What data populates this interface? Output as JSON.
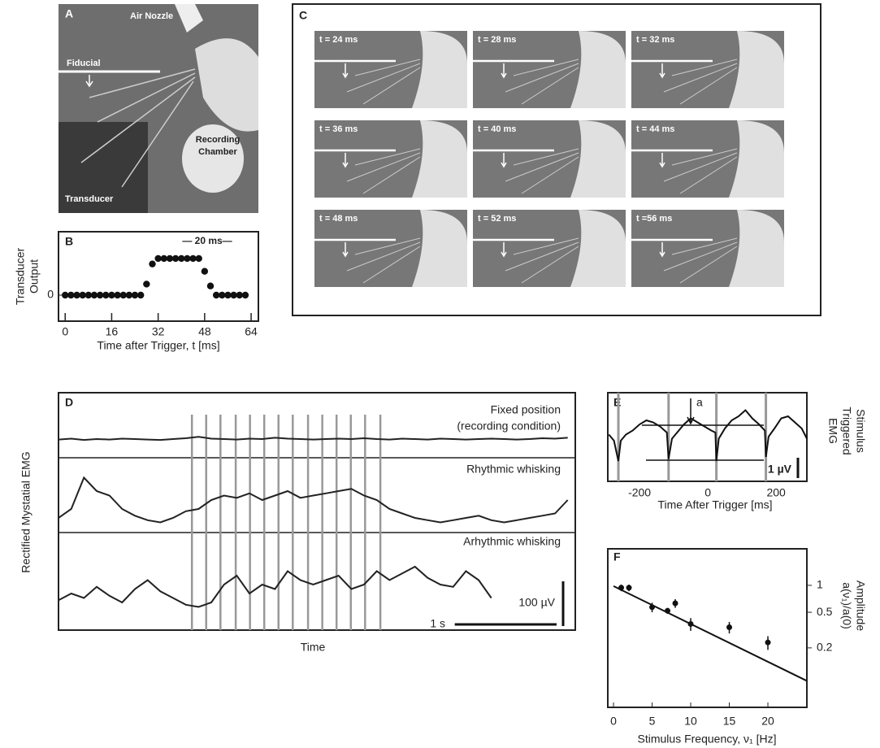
{
  "figure_panels": {
    "A": {
      "letter": "A",
      "labels": {
        "nozzle": "Air Nozzle",
        "fiducial": "Fiducial",
        "chamber": [
          "Recording",
          "Chamber"
        ],
        "transducer": "Transducer"
      }
    },
    "C": {
      "letter": "C",
      "frames": [
        "t = 24 ms",
        "t = 28 ms",
        "t = 32 ms",
        "t = 36 ms",
        "t = 40 ms",
        "t = 44 ms",
        "t = 48 ms",
        "t = 52 ms",
        "t =56 ms"
      ]
    }
  },
  "chart_data": [
    {
      "type": "scatter",
      "panel": "B",
      "ylabel": [
        "Transducer",
        "Output"
      ],
      "xlabel": "Time after Trigger, t [ms]",
      "annotation": "— 20 ms—",
      "x": [
        0,
        2,
        4,
        6,
        8,
        10,
        12,
        14,
        16,
        18,
        20,
        22,
        24,
        26,
        28,
        30,
        32,
        34,
        36,
        38,
        40,
        42,
        44,
        46,
        48,
        50,
        52,
        54,
        56,
        58,
        60,
        62
      ],
      "values": [
        0,
        0,
        0,
        0,
        0,
        0,
        0,
        0,
        0,
        0,
        0,
        0,
        0,
        0,
        0.3,
        0.85,
        1,
        1,
        1,
        1,
        1,
        1,
        1,
        1,
        0.65,
        0.25,
        0,
        0,
        0,
        0,
        0,
        0
      ],
      "xlim": [
        -2.3,
        66.5
      ],
      "ylim": [
        -0.71,
        1.73
      ],
      "xticks": [
        0,
        16,
        32,
        48,
        64
      ],
      "yticks": [
        0
      ],
      "color": "#111"
    },
    {
      "type": "traces",
      "panel": "D",
      "ylabel": "Rectified Mystatial EMG",
      "xlabel": "Time",
      "xlim": [
        0,
        5.05
      ],
      "stimuli": [
        1.31,
        1.45,
        1.59,
        1.74,
        1.88,
        2.02,
        2.16,
        2.3,
        2.45,
        2.59,
        2.73,
        2.87,
        3.01,
        3.16
      ],
      "x": [
        0,
        0.125,
        0.25,
        0.375,
        0.5,
        0.625,
        0.75,
        0.875,
        1,
        1.125,
        1.25,
        1.375,
        1.5,
        1.625,
        1.75,
        1.875,
        2,
        2.125,
        2.25,
        2.375,
        2.5,
        2.625,
        2.75,
        2.875,
        3,
        3.125,
        3.25,
        3.375,
        3.5,
        3.625,
        3.75,
        3.875,
        4,
        4.125,
        4.25,
        4.375,
        4.5,
        4.625,
        4.75,
        4.875,
        5
      ],
      "series": [
        {
          "title": [
            "Fixed position",
            "(recording condition)"
          ],
          "color": "#222",
          "values": [
            8,
            10,
            7,
            9,
            8,
            10,
            9,
            8,
            7,
            9,
            11,
            14,
            10,
            9,
            8,
            10,
            9,
            12,
            10,
            9,
            8,
            9,
            10,
            9,
            11,
            9,
            8,
            10,
            9,
            8,
            10,
            9,
            8,
            9,
            10,
            9,
            8,
            9,
            11,
            10,
            12
          ]
        },
        {
          "title": [
            "Rhythmic whisking"
          ],
          "color": "#222",
          "values": [
            20,
            40,
            110,
            80,
            70,
            40,
            25,
            15,
            10,
            20,
            35,
            40,
            60,
            70,
            65,
            75,
            60,
            70,
            80,
            65,
            70,
            75,
            80,
            85,
            70,
            60,
            40,
            30,
            20,
            15,
            10,
            15,
            20,
            25,
            15,
            10,
            15,
            20,
            25,
            30,
            60
          ]
        },
        {
          "title": [
            "Arhythmic whisking"
          ],
          "color": "#222",
          "values": [
            25,
            40,
            30,
            55,
            35,
            20,
            50,
            70,
            45,
            30,
            15,
            10,
            20,
            60,
            80,
            40,
            60,
            50,
            90,
            70,
            60,
            70,
            80,
            50,
            60,
            90,
            70,
            85,
            100,
            75,
            60,
            55,
            90,
            70,
            30,
            null,
            null,
            null,
            null,
            null,
            null
          ]
        }
      ],
      "scale_bars": [
        {
          "value": 100,
          "label": "100 µV"
        },
        {
          "value": 1,
          "label": "1 s"
        }
      ]
    },
    {
      "type": "line",
      "panel": "E",
      "xlabel": "Time After Trigger  [ms]",
      "ylabel": [
        "Stimulus",
        "Triggered",
        "EMG"
      ],
      "x": [
        -290,
        -275,
        -262,
        -255,
        -240,
        -220,
        -200,
        -180,
        -160,
        -140,
        -120,
        -115,
        -105,
        -90,
        -70,
        -50,
        -30,
        -10,
        10,
        22,
        25,
        32,
        50,
        70,
        90,
        110,
        130,
        150,
        167,
        170,
        178,
        195,
        215,
        235,
        255,
        275,
        290
      ],
      "values": [
        -0.3,
        -0.6,
        -1.6,
        -0.6,
        -0.3,
        -0.1,
        0.2,
        0.4,
        0.3,
        0.1,
        -0.2,
        -1.5,
        -0.5,
        -0.2,
        0.2,
        0.5,
        0.3,
        0.1,
        -0.1,
        -0.2,
        -1.6,
        -0.5,
        0.0,
        0.4,
        0.6,
        0.9,
        0.5,
        0.2,
        -0.1,
        -1.4,
        -0.4,
        0.0,
        0.5,
        0.6,
        0.3,
        0.0,
        -0.5
      ],
      "xlim": [
        -293,
        290
      ],
      "ylim": [
        -2.6,
        1.76
      ],
      "xticks": [
        -200,
        0,
        200
      ],
      "stimuli": [
        -262,
        -115,
        25,
        170
      ],
      "reference_levels": [
        0.16,
        -1.56
      ],
      "annotation": "a",
      "scale_bar": {
        "value": 1,
        "label": "1 µV"
      },
      "color": "#111"
    },
    {
      "type": "errorscatter",
      "panel": "F",
      "log_y": true,
      "xlabel": "Stimulus Frequency, ν₁ [Hz]",
      "ylabel": [
        "Amplitude",
        "a(ν₁)/a(0)"
      ],
      "x": [
        1,
        2,
        5,
        7,
        8,
        10,
        15,
        20
      ],
      "values": [
        0.94,
        0.94,
        0.57,
        0.52,
        0.63,
        0.37,
        0.34,
        0.23
      ],
      "errors": [
        0.08,
        0.08,
        0.07,
        0.04,
        0.07,
        0.06,
        0.05,
        0.04
      ],
      "xlim": [
        -0.74,
        25.05
      ],
      "ylim": [
        0.0433,
        2.56
      ],
      "xticks": [
        0,
        5,
        10,
        15,
        20
      ],
      "yticks": [
        1,
        0.5,
        0.2
      ],
      "fit": {
        "x": [
          0,
          25
        ],
        "values": [
          0.98,
          0.086
        ]
      },
      "color": "#111"
    }
  ]
}
